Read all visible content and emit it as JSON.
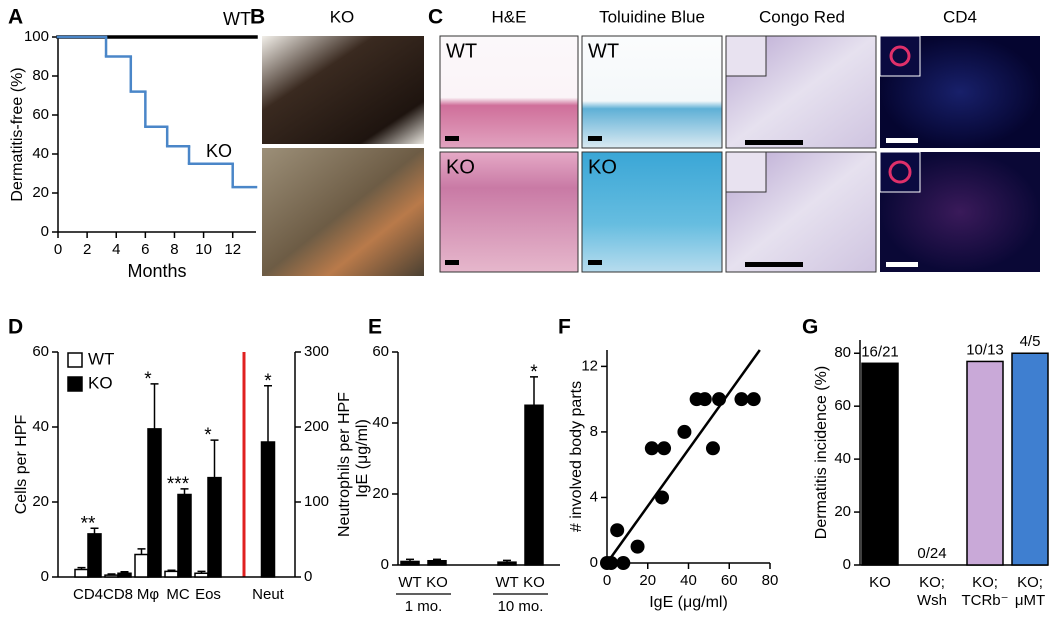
{
  "chart_data": [
    {
      "panel": "A",
      "type": "step",
      "ylabel": "Dermatitis-free (%)",
      "xlabel": "Months",
      "xlim": [
        0,
        13.6
      ],
      "xticks": [
        0,
        2,
        4,
        6,
        8,
        10,
        12
      ],
      "ylim": [
        0,
        100
      ],
      "yticks": [
        0,
        20,
        40,
        60,
        80,
        100
      ],
      "series": [
        {
          "name": "WT",
          "color": "#000000",
          "x": [
            0,
            13.6
          ],
          "values": [
            100,
            100
          ]
        },
        {
          "name": "KO",
          "color": "#4a86c8",
          "x": [
            0,
            3.3,
            5,
            6,
            7.5,
            9,
            12,
            13.6
          ],
          "values": [
            100,
            90,
            72,
            54,
            44,
            35,
            23,
            23
          ]
        }
      ]
    },
    {
      "panel": "D",
      "type": "bar",
      "ylabel": "Cells per HPF",
      "y2label": "Neutrophils per HPF",
      "categories": [
        "CD4",
        "CD8",
        "Mφ",
        "MC",
        "Eos",
        "Neut"
      ],
      "ylim": [
        0,
        60
      ],
      "yticks": [
        0,
        20,
        40,
        60
      ],
      "y2lim": [
        0,
        300
      ],
      "y2ticks": [
        0,
        100,
        200,
        300
      ],
      "legend": "top-left",
      "series": [
        {
          "name": "WT",
          "color": "#ffffff",
          "values": [
            2,
            0.5,
            6,
            1.5,
            1,
            null
          ],
          "errors": [
            0.5,
            0.3,
            1.5,
            0.3,
            0.5,
            null
          ]
        },
        {
          "name": "KO",
          "color": "#000000",
          "values": [
            11.5,
            1,
            39.5,
            22,
            26.5,
            null
          ],
          "errors": [
            1.5,
            0.4,
            12,
            1.5,
            10,
            null
          ]
        },
        {
          "name": "KO",
          "color": "#000000",
          "axis": "y2",
          "values": [
            null,
            null,
            null,
            null,
            null,
            180
          ],
          "errors": [
            null,
            null,
            null,
            null,
            null,
            75
          ]
        }
      ],
      "annotations": [
        "**",
        null,
        "*",
        "***",
        "*",
        "*"
      ]
    },
    {
      "panel": "E",
      "type": "bar",
      "ylabel": "IgE (μg/ml)",
      "categories": [
        "WT",
        "KO",
        "WT",
        "KO"
      ],
      "groups": [
        "1 mo.",
        "10 mo."
      ],
      "ylim": [
        0,
        60
      ],
      "yticks": [
        0,
        20,
        40,
        60
      ],
      "series": [
        {
          "color": "#000000",
          "values": [
            1,
            1.2,
            0.8,
            45
          ],
          "errors": [
            0.6,
            0.4,
            0.5,
            8
          ]
        }
      ],
      "annotations": [
        null,
        null,
        null,
        "*"
      ]
    },
    {
      "panel": "F",
      "type": "scatter",
      "xlabel": "IgE (μg/ml)",
      "ylabel": "# involved body parts",
      "xlim": [
        0,
        80
      ],
      "xticks": [
        0,
        20,
        40,
        60,
        80
      ],
      "ylim": [
        0,
        13
      ],
      "yticks": [
        0,
        4,
        8,
        12
      ],
      "color": "#000000",
      "x": [
        0,
        2,
        5,
        8,
        15,
        22,
        27,
        28,
        38,
        44,
        48,
        52,
        55,
        66,
        72
      ],
      "values": [
        0,
        0,
        2,
        0,
        1,
        7,
        4,
        7,
        8,
        10,
        10,
        7,
        10,
        10,
        10
      ],
      "fit": {
        "x": [
          0,
          75
        ],
        "values": [
          0,
          13
        ]
      }
    },
    {
      "panel": "G",
      "type": "bar",
      "ylabel": "Dermatitis incidence (%)",
      "categories": [
        [
          "KO"
        ],
        [
          "KO;",
          "Wsh"
        ],
        [
          "KO;",
          "TCRb⁻"
        ],
        [
          "KO;",
          "μMT"
        ]
      ],
      "ylim": [
        0,
        85
      ],
      "yticks": [
        0,
        20,
        40,
        60,
        80
      ],
      "series": [
        {
          "colors": [
            "#000000",
            "#ffffff",
            "#c9a9d8",
            "#3f7fd0"
          ],
          "values": [
            76.2,
            0,
            76.9,
            80
          ]
        }
      ],
      "annotations": [
        "16/21",
        "0/24",
        "10/13",
        "4/5"
      ]
    }
  ],
  "figure_images": [
    {
      "panel": "B",
      "title": "KO"
    },
    {
      "panel": "C",
      "columns": [
        "H&E",
        "Toluidine Blue",
        "Congo Red",
        "CD4"
      ],
      "rows": [
        "WT",
        "KO"
      ]
    }
  ]
}
